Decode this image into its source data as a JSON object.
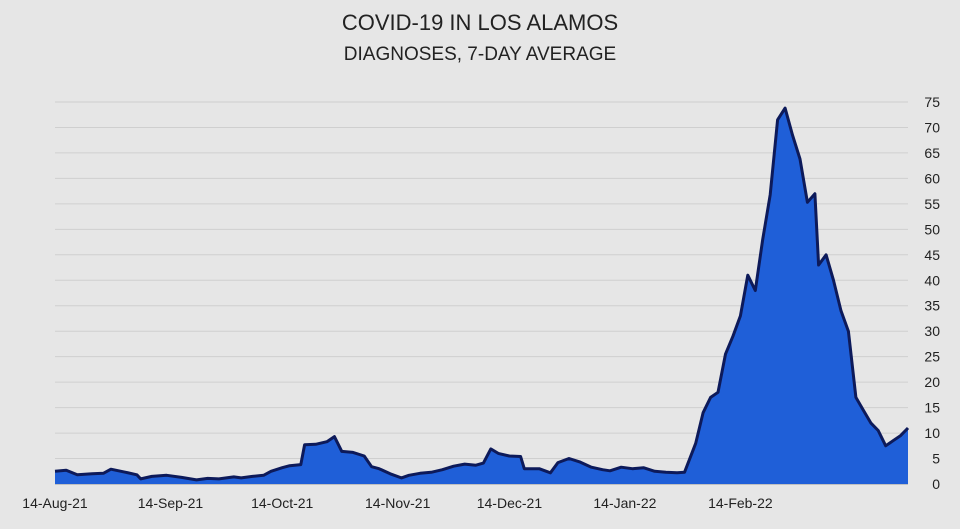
{
  "chart_data": {
    "type": "area",
    "title": "COVID-19 IN LOS ALAMOS",
    "subtitle": "DIAGNOSES, 7-DAY AVERAGE",
    "xlabel": "",
    "ylabel": "",
    "ylim": [
      0,
      75
    ],
    "y_ticks": [
      0,
      5,
      10,
      15,
      20,
      25,
      30,
      35,
      40,
      45,
      50,
      55,
      60,
      65,
      70,
      75
    ],
    "y_axis_side": "right",
    "x_ticks": [
      {
        "date": "2021-08-14",
        "label": "14-Aug-21"
      },
      {
        "date": "2021-09-14",
        "label": "14-Sep-21"
      },
      {
        "date": "2021-10-14",
        "label": "14-Oct-21"
      },
      {
        "date": "2021-11-14",
        "label": "14-Nov-21"
      },
      {
        "date": "2021-12-14",
        "label": "14-Dec-21"
      },
      {
        "date": "2022-01-14",
        "label": "14-Jan-22"
      },
      {
        "date": "2022-02-14",
        "label": "14-Feb-22"
      }
    ],
    "grid": true,
    "legend": "none",
    "fill_color": "#1f5fd8",
    "line_color": "#0d1a5a",
    "series": [
      {
        "points": [
          [
            "2021-08-14",
            2.5
          ],
          [
            "2021-08-17",
            2.7
          ],
          [
            "2021-08-20",
            1.8
          ],
          [
            "2021-08-24",
            2.0
          ],
          [
            "2021-08-27",
            2.1
          ],
          [
            "2021-08-29",
            2.9
          ],
          [
            "2021-09-02",
            2.3
          ],
          [
            "2021-09-05",
            1.8
          ],
          [
            "2021-09-06",
            1.0
          ],
          [
            "2021-09-09",
            1.5
          ],
          [
            "2021-09-13",
            1.7
          ],
          [
            "2021-09-17",
            1.3
          ],
          [
            "2021-09-21",
            0.8
          ],
          [
            "2021-09-24",
            1.1
          ],
          [
            "2021-09-27",
            1.0
          ],
          [
            "2021-10-01",
            1.4
          ],
          [
            "2021-10-03",
            1.2
          ],
          [
            "2021-10-06",
            1.5
          ],
          [
            "2021-10-09",
            1.7
          ],
          [
            "2021-10-11",
            2.5
          ],
          [
            "2021-10-14",
            3.2
          ],
          [
            "2021-10-16",
            3.6
          ],
          [
            "2021-10-19",
            3.8
          ],
          [
            "2021-10-20",
            7.7
          ],
          [
            "2021-10-23",
            7.8
          ],
          [
            "2021-10-26",
            8.3
          ],
          [
            "2021-10-28",
            9.3
          ],
          [
            "2021-10-30",
            6.4
          ],
          [
            "2021-11-02",
            6.2
          ],
          [
            "2021-11-05",
            5.5
          ],
          [
            "2021-11-07",
            3.4
          ],
          [
            "2021-11-09",
            3.0
          ],
          [
            "2021-11-12",
            2.0
          ],
          [
            "2021-11-15",
            1.2
          ],
          [
            "2021-11-17",
            1.7
          ],
          [
            "2021-11-20",
            2.1
          ],
          [
            "2021-11-23",
            2.3
          ],
          [
            "2021-11-26",
            2.8
          ],
          [
            "2021-11-29",
            3.5
          ],
          [
            "2021-12-02",
            3.9
          ],
          [
            "2021-12-05",
            3.7
          ],
          [
            "2021-12-07",
            4.1
          ],
          [
            "2021-12-09",
            6.9
          ],
          [
            "2021-12-11",
            6.0
          ],
          [
            "2021-12-14",
            5.5
          ],
          [
            "2021-12-17",
            5.4
          ],
          [
            "2021-12-18",
            3.0
          ],
          [
            "2021-12-22",
            3.0
          ],
          [
            "2021-12-25",
            2.2
          ],
          [
            "2021-12-27",
            4.2
          ],
          [
            "2021-12-30",
            5.0
          ],
          [
            "2022-01-02",
            4.3
          ],
          [
            "2022-01-05",
            3.3
          ],
          [
            "2022-01-08",
            2.8
          ],
          [
            "2022-01-10",
            2.6
          ],
          [
            "2022-01-13",
            3.3
          ],
          [
            "2022-01-16",
            3.0
          ],
          [
            "2022-01-19",
            3.2
          ],
          [
            "2022-01-22",
            2.5
          ],
          [
            "2022-01-25",
            2.3
          ],
          [
            "2022-01-28",
            2.2
          ],
          [
            "2022-01-30",
            2.3
          ],
          [
            "2022-02-02",
            8.0
          ],
          [
            "2022-02-04",
            14.0
          ],
          [
            "2022-02-06",
            17.0
          ],
          [
            "2022-02-08",
            18.0
          ],
          [
            "2022-02-10",
            25.5
          ],
          [
            "2022-02-12",
            29.0
          ],
          [
            "2022-02-14",
            33.0
          ],
          [
            "2022-02-16",
            41.0
          ],
          [
            "2022-02-18",
            38.0
          ],
          [
            "2022-02-20",
            48.0
          ],
          [
            "2022-02-22",
            56.8
          ],
          [
            "2022-02-24",
            71.5
          ],
          [
            "2022-02-26",
            73.8
          ],
          [
            "2022-02-28",
            68.5
          ],
          [
            "2022-03-02",
            63.8
          ],
          [
            "2022-03-04",
            55.3
          ],
          [
            "2022-03-06",
            57.0
          ],
          [
            "2022-03-07",
            43.0
          ],
          [
            "2022-03-09",
            45.0
          ],
          [
            "2022-03-11",
            40.0
          ],
          [
            "2022-03-13",
            34.0
          ],
          [
            "2022-03-15",
            30.0
          ],
          [
            "2022-03-17",
            17.0
          ],
          [
            "2022-03-19",
            14.5
          ],
          [
            "2022-03-21",
            12.0
          ],
          [
            "2022-03-23",
            10.5
          ],
          [
            "2022-03-25",
            7.5
          ],
          [
            "2022-03-27",
            8.5
          ],
          [
            "2022-03-29",
            9.5
          ],
          [
            "2022-03-31",
            11.0
          ]
        ]
      }
    ]
  }
}
